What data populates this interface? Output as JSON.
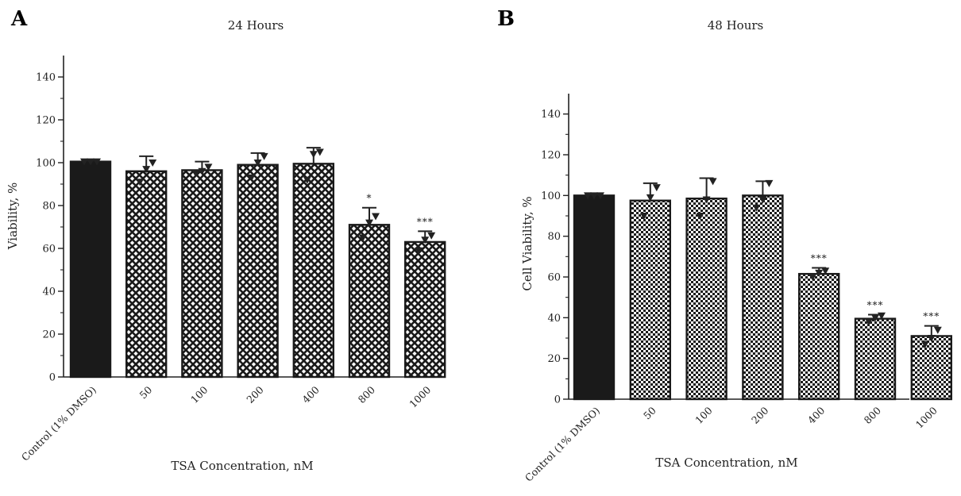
{
  "chart_data": [
    {
      "type": "bar",
      "panel_label": "A",
      "title": "24 Hours",
      "xlabel": "TSA Concentration, nM",
      "ylabel": "Viability, %",
      "ylim": [
        0,
        150
      ],
      "yticks": [
        0,
        20,
        40,
        60,
        80,
        100,
        120,
        140
      ],
      "categories": [
        "Control (1% DMSO)",
        "50",
        "100",
        "200",
        "400",
        "800",
        "1000"
      ],
      "values": [
        100.5,
        96,
        96.5,
        99,
        99.5,
        71,
        63
      ],
      "error": [
        0.5,
        7,
        4,
        5.5,
        7.5,
        8,
        5
      ],
      "significance": [
        "",
        "",
        "",
        "",
        "",
        "*",
        "***"
      ],
      "points": [
        [
          100.5,
          100.5,
          100.5
        ],
        [
          91,
          97,
          100
        ],
        [
          95,
          96,
          98
        ],
        [
          93,
          100,
          103
        ],
        [
          92,
          104,
          105
        ],
        [
          65,
          72,
          75
        ],
        [
          59,
          64,
          66
        ]
      ],
      "fill_pattern": [
        "solid",
        "diamond-grid",
        "diamond-grid",
        "diamond-grid",
        "diamond-grid",
        "diamond-grid",
        "diamond-grid"
      ],
      "colors": {
        "bar_fill": "#1a1a1a",
        "bar_edge": "#1a1a1a",
        "axis": "#222222"
      }
    },
    {
      "type": "bar",
      "panel_label": "B",
      "title": "48 Hours",
      "xlabel": "TSA Concentration, nM",
      "ylabel": "Cell Viability, %",
      "ylim": [
        0,
        150
      ],
      "yticks": [
        0,
        20,
        40,
        60,
        80,
        100,
        120,
        140
      ],
      "categories": [
        "Control (1% DMSO)",
        "50",
        "100",
        "200",
        "400",
        "800",
        "1000"
      ],
      "values": [
        100,
        97.5,
        98.5,
        100,
        61.5,
        39.5,
        31
      ],
      "error": [
        0.5,
        8.5,
        10,
        7,
        3,
        2,
        5
      ],
      "significance": [
        "",
        "",
        "",
        "",
        "***",
        "***",
        "***"
      ],
      "points": [
        [
          100,
          100,
          100
        ],
        [
          90,
          99,
          104
        ],
        [
          90,
          98,
          107
        ],
        [
          94,
          98,
          106
        ],
        [
          60,
          62,
          63
        ],
        [
          38,
          40,
          41
        ],
        [
          27,
          30,
          34
        ]
      ],
      "fill_pattern": [
        "solid",
        "checker",
        "checker",
        "checker",
        "checker",
        "checker",
        "checker"
      ],
      "colors": {
        "bar_fill": "#1a1a1a",
        "bar_edge": "#1a1a1a",
        "axis": "#222222"
      }
    }
  ]
}
